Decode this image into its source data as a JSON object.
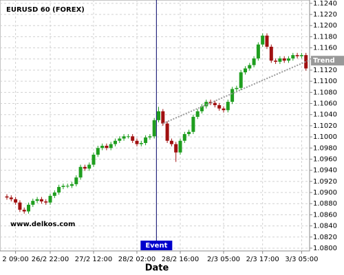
{
  "chart_data": {
    "type": "candlestick",
    "title": "EURUSD 60 (FOREX)",
    "xlabel": "Date",
    "watermark": "www.delkos.com",
    "categories": [
      null,
      null,
      "2 09:00",
      null,
      null,
      null,
      null,
      null,
      null,
      null,
      "26/2 22:00",
      null,
      null,
      null,
      null,
      null,
      null,
      null,
      null,
      null,
      "27/2 12:00",
      null,
      null,
      null,
      null,
      null,
      null,
      null,
      null,
      null,
      "28/2 02:00",
      null,
      null,
      null,
      null,
      null,
      null,
      null,
      null,
      null,
      "28/2 16:00",
      null,
      null,
      null,
      null,
      null,
      null,
      null,
      null,
      null,
      "2/3 05:00",
      null,
      null,
      null,
      null,
      null,
      null,
      null,
      null,
      "2/3 17:00",
      null,
      null,
      null,
      null,
      null,
      null,
      null,
      null,
      "3/3 05:00",
      null
    ],
    "open": [
      1.0893,
      1.0891,
      1.0888,
      1.0882,
      1.0869,
      1.0866,
      1.0878,
      1.0885,
      1.0888,
      1.0884,
      1.0882,
      1.0894,
      1.09,
      1.091,
      1.0912,
      1.0912,
      1.0915,
      1.0927,
      1.0946,
      1.0943,
      1.095,
      1.0968,
      1.098,
      1.0984,
      1.098,
      1.0987,
      1.0993,
      1.0997,
      1.1001,
      1.1001,
      1.0993,
      1.0987,
      1.0989,
      1.0999,
      1.1001,
      1.103,
      1.1046,
      1.1024,
      1.0993,
      1.0987,
      1.0972,
      1.0993,
      1.1005,
      1.1009,
      1.1036,
      1.1046,
      1.1055,
      1.1063,
      1.1061,
      1.1057,
      1.1051,
      1.1048,
      1.1063,
      1.1086,
      1.1088,
      1.1116,
      1.1123,
      1.1129,
      1.1141,
      1.1166,
      1.1182,
      1.1162,
      1.1137,
      1.1135,
      1.1141,
      1.1137,
      1.1141,
      1.1147,
      1.1145,
      1.1147
    ],
    "high": [
      1.0897,
      1.0895,
      1.0892,
      1.0886,
      1.0873,
      1.0882,
      1.0889,
      1.0892,
      1.0892,
      1.0888,
      1.0898,
      1.0904,
      1.0914,
      1.0916,
      1.0916,
      1.0919,
      1.0931,
      1.095,
      1.095,
      1.0954,
      1.0972,
      1.0984,
      1.0988,
      1.0988,
      1.0991,
      1.0997,
      1.1001,
      1.1005,
      1.1005,
      1.1005,
      1.0997,
      1.0993,
      1.1003,
      1.1005,
      1.1034,
      1.1054,
      1.105,
      1.1028,
      1.0997,
      1.0991,
      1.0997,
      1.1009,
      1.1013,
      1.104,
      1.105,
      1.1059,
      1.1067,
      1.1067,
      1.1065,
      1.1061,
      1.1055,
      1.1067,
      1.109,
      1.1092,
      1.112,
      1.1127,
      1.1133,
      1.1145,
      1.117,
      1.1186,
      1.1186,
      1.1166,
      1.1141,
      1.1145,
      1.1145,
      1.1145,
      1.1151,
      1.1151,
      1.1151,
      1.1151
    ],
    "low": [
      1.0887,
      1.0884,
      1.0878,
      1.0865,
      1.0862,
      1.0862,
      1.0874,
      1.0881,
      1.088,
      1.0878,
      1.0878,
      1.089,
      1.0896,
      1.0906,
      1.0908,
      1.0908,
      1.0911,
      1.0923,
      1.0939,
      1.0939,
      1.0946,
      1.0964,
      1.0976,
      1.0976,
      1.0976,
      1.0983,
      1.0989,
      1.0993,
      1.0997,
      1.0989,
      1.0983,
      1.0983,
      1.0985,
      1.0995,
      1.0997,
      1.1026,
      1.102,
      1.0989,
      1.0983,
      1.0955,
      1.0968,
      1.0989,
      1.1001,
      1.1005,
      1.1032,
      1.1042,
      1.1051,
      1.1057,
      1.1053,
      1.1047,
      1.1044,
      1.1044,
      1.1059,
      1.1082,
      1.1084,
      1.1112,
      1.1119,
      1.1125,
      1.1137,
      1.1162,
      1.1158,
      1.1133,
      1.1131,
      1.1131,
      1.1133,
      1.1133,
      1.1137,
      1.1141,
      1.1141,
      1.1119
    ],
    "close": [
      1.0891,
      1.0888,
      1.0882,
      1.0869,
      1.0866,
      1.0878,
      1.0885,
      1.0888,
      1.0884,
      1.0882,
      1.0894,
      1.09,
      1.091,
      1.0912,
      1.0912,
      1.0915,
      1.0927,
      1.0946,
      1.0943,
      1.095,
      1.0968,
      1.098,
      1.0984,
      1.098,
      1.0987,
      1.0993,
      1.0997,
      1.1001,
      1.1001,
      1.0993,
      1.0987,
      1.0989,
      1.0999,
      1.1001,
      1.103,
      1.1046,
      1.1024,
      1.0993,
      1.0987,
      1.0972,
      1.0993,
      1.1005,
      1.1009,
      1.1036,
      1.1046,
      1.1055,
      1.1063,
      1.1061,
      1.1057,
      1.1051,
      1.1048,
      1.1063,
      1.1086,
      1.1088,
      1.1116,
      1.1123,
      1.1129,
      1.1141,
      1.1166,
      1.1182,
      1.1162,
      1.1137,
      1.1135,
      1.1141,
      1.1137,
      1.1141,
      1.1147,
      1.1145,
      1.1147,
      1.1123
    ],
    "up_color": "#1f9e1f",
    "down_color": "#a01010",
    "ylim": [
      1.0795,
      1.1246
    ],
    "yticks": [
      {
        "value": 1.08,
        "label": "1.0800"
      },
      {
        "value": 1.082,
        "label": "1.0820"
      },
      {
        "value": 1.084,
        "label": "1.0840"
      },
      {
        "value": 1.086,
        "label": "1.0860"
      },
      {
        "value": 1.088,
        "label": "1.0880"
      },
      {
        "value": 1.09,
        "label": "1.0900"
      },
      {
        "value": 1.092,
        "label": "1.0920"
      },
      {
        "value": 1.094,
        "label": "1.0940"
      },
      {
        "value": 1.096,
        "label": "1.0960"
      },
      {
        "value": 1.098,
        "label": "1.0980"
      },
      {
        "value": 1.1,
        "label": "1.1000"
      },
      {
        "value": 1.102,
        "label": "1.1020"
      },
      {
        "value": 1.104,
        "label": "1.1040"
      },
      {
        "value": 1.106,
        "label": "1.1060"
      },
      {
        "value": 1.108,
        "label": "1.1080"
      },
      {
        "value": 1.11,
        "label": "1.1100"
      },
      {
        "value": 1.112,
        "label": "1.1120"
      },
      {
        "value": 1.114,
        "label": "1.1140"
      },
      {
        "value": 1.116,
        "label": "1.1160"
      },
      {
        "value": 1.118,
        "label": "1.1180"
      },
      {
        "value": 1.12,
        "label": "1.1200"
      },
      {
        "value": 1.122,
        "label": "1.1220"
      },
      {
        "value": 1.124,
        "label": "1.1240"
      }
    ],
    "grid": true,
    "event": {
      "label": "Event",
      "index": 34.5,
      "color": "#0000cc"
    },
    "trend": {
      "label": "Trend",
      "x": [
        36,
        69.5
      ],
      "y": [
        1.1024,
        1.1137
      ],
      "color": "#999999"
    }
  }
}
